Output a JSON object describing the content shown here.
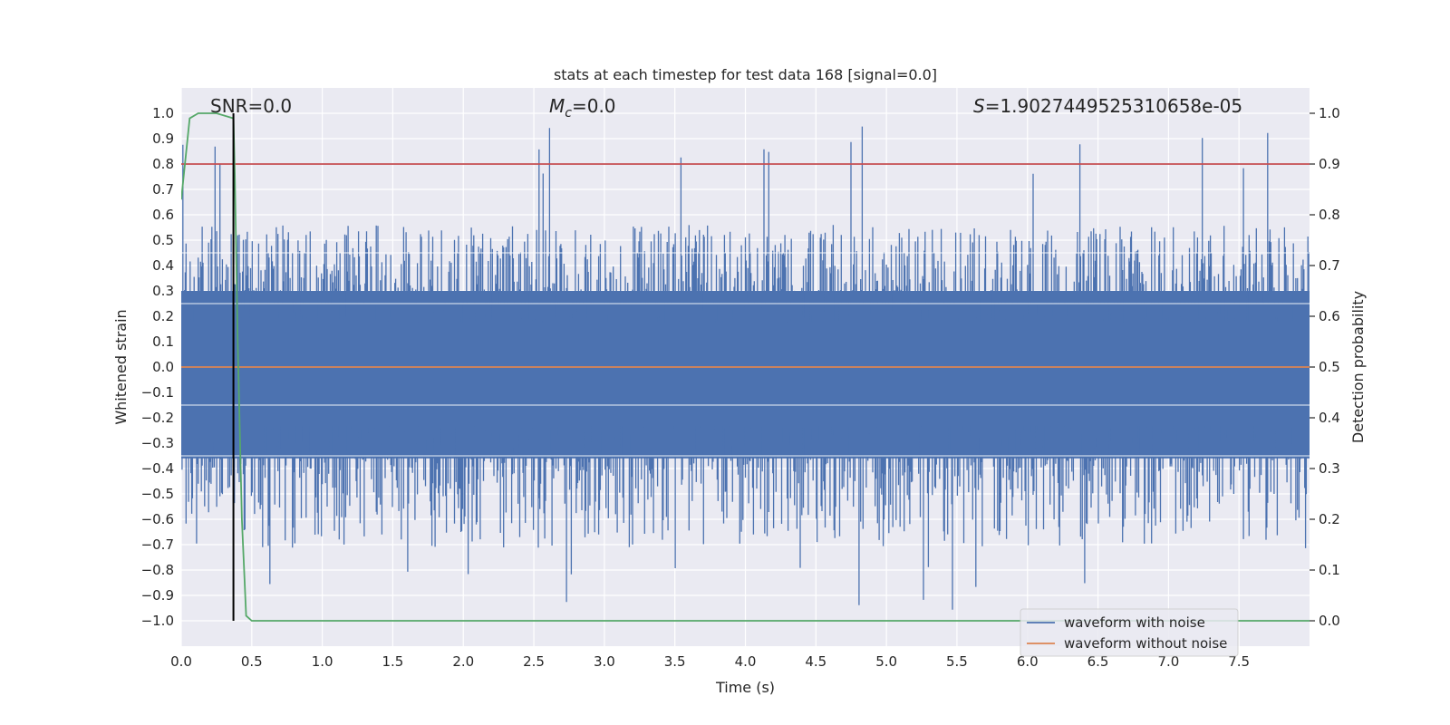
{
  "chart_data": {
    "type": "line",
    "title": "stats at each timestep for test data 168 [signal=0.0]",
    "xlabel": "Time (s)",
    "ylabel": "Whitened strain",
    "y2label": "Detection probability",
    "xlim": [
      0.0,
      8.0
    ],
    "ylim": [
      -1.1,
      1.1
    ],
    "y2lim": [
      -0.05,
      1.05
    ],
    "xticks": [
      0.0,
      0.5,
      1.0,
      1.5,
      2.0,
      2.5,
      3.0,
      3.5,
      4.0,
      4.5,
      5.0,
      5.5,
      6.0,
      6.5,
      7.0,
      7.5
    ],
    "xtick_labels": [
      "0.0",
      "0.5",
      "1.0",
      "1.5",
      "2.0",
      "2.5",
      "3.0",
      "3.5",
      "4.0",
      "4.5",
      "5.0",
      "5.5",
      "6.0",
      "6.5",
      "7.0",
      "7.5"
    ],
    "yticks": [
      1.0,
      0.9,
      0.8,
      0.7,
      0.6,
      0.5,
      0.4,
      0.3,
      0.2,
      0.1,
      0.0,
      -0.1,
      -0.2,
      -0.3,
      -0.4,
      -0.5,
      -0.6,
      -0.7,
      -0.8,
      -0.9,
      -1.0
    ],
    "ytick_labels": [
      "1.0",
      "0.9",
      "0.8",
      "0.7",
      "0.6",
      "0.5",
      "0.4",
      "0.3",
      "0.2",
      "0.1",
      "0.0",
      "−0.1",
      "−0.2",
      "−0.3",
      "−0.4",
      "−0.5",
      "−0.6",
      "−0.7",
      "−0.8",
      "−0.9",
      "−1.0"
    ],
    "y2ticks": [
      1.0,
      0.9,
      0.8,
      0.7,
      0.6,
      0.5,
      0.4,
      0.3,
      0.2,
      0.1,
      0.0
    ],
    "y2tick_labels": [
      "1.0",
      "0.9",
      "0.8",
      "0.7",
      "0.6",
      "0.5",
      "0.4",
      "0.3",
      "0.2",
      "0.1",
      "0.0"
    ],
    "annotations": {
      "snr": "SNR=0.0",
      "mc_symbol": "M",
      "mc_sub": "c",
      "mc_value": "=0.0",
      "s_symbol": "S",
      "s_value": "=1.9027449525310658e-05"
    },
    "series": [
      {
        "name": "waveform with noise",
        "axis": "left",
        "color": "#4c72b0",
        "band_upper_typical": 0.32,
        "band_lower_typical": -0.42,
        "peak_max": 0.99,
        "peak_min": -1.0
      },
      {
        "name": "waveform without noise",
        "axis": "left",
        "color": "#dd8452",
        "constant": 0.0
      },
      {
        "name": "detection probability",
        "axis": "right",
        "color": "#55a868",
        "x": [
          0.0,
          0.06,
          0.12,
          0.25,
          0.37,
          0.38,
          0.4,
          0.43,
          0.46,
          0.5,
          8.0
        ],
        "y": [
          0.83,
          0.99,
          1.0,
          1.0,
          0.99,
          0.88,
          0.55,
          0.2,
          0.01,
          0.0,
          0.0
        ]
      },
      {
        "name": "threshold",
        "axis": "right",
        "color": "#c44e52",
        "constant": 0.9
      },
      {
        "name": "detection time",
        "axis": "left",
        "color": "#000000",
        "x": 0.37,
        "y_range": [
          -1.0,
          1.0
        ]
      }
    ],
    "legend": {
      "position": "bottom-right",
      "entries": [
        {
          "label": "waveform with noise",
          "color": "#4c72b0"
        },
        {
          "label": "waveform without noise",
          "color": "#dd8452"
        }
      ]
    },
    "grid": true
  }
}
